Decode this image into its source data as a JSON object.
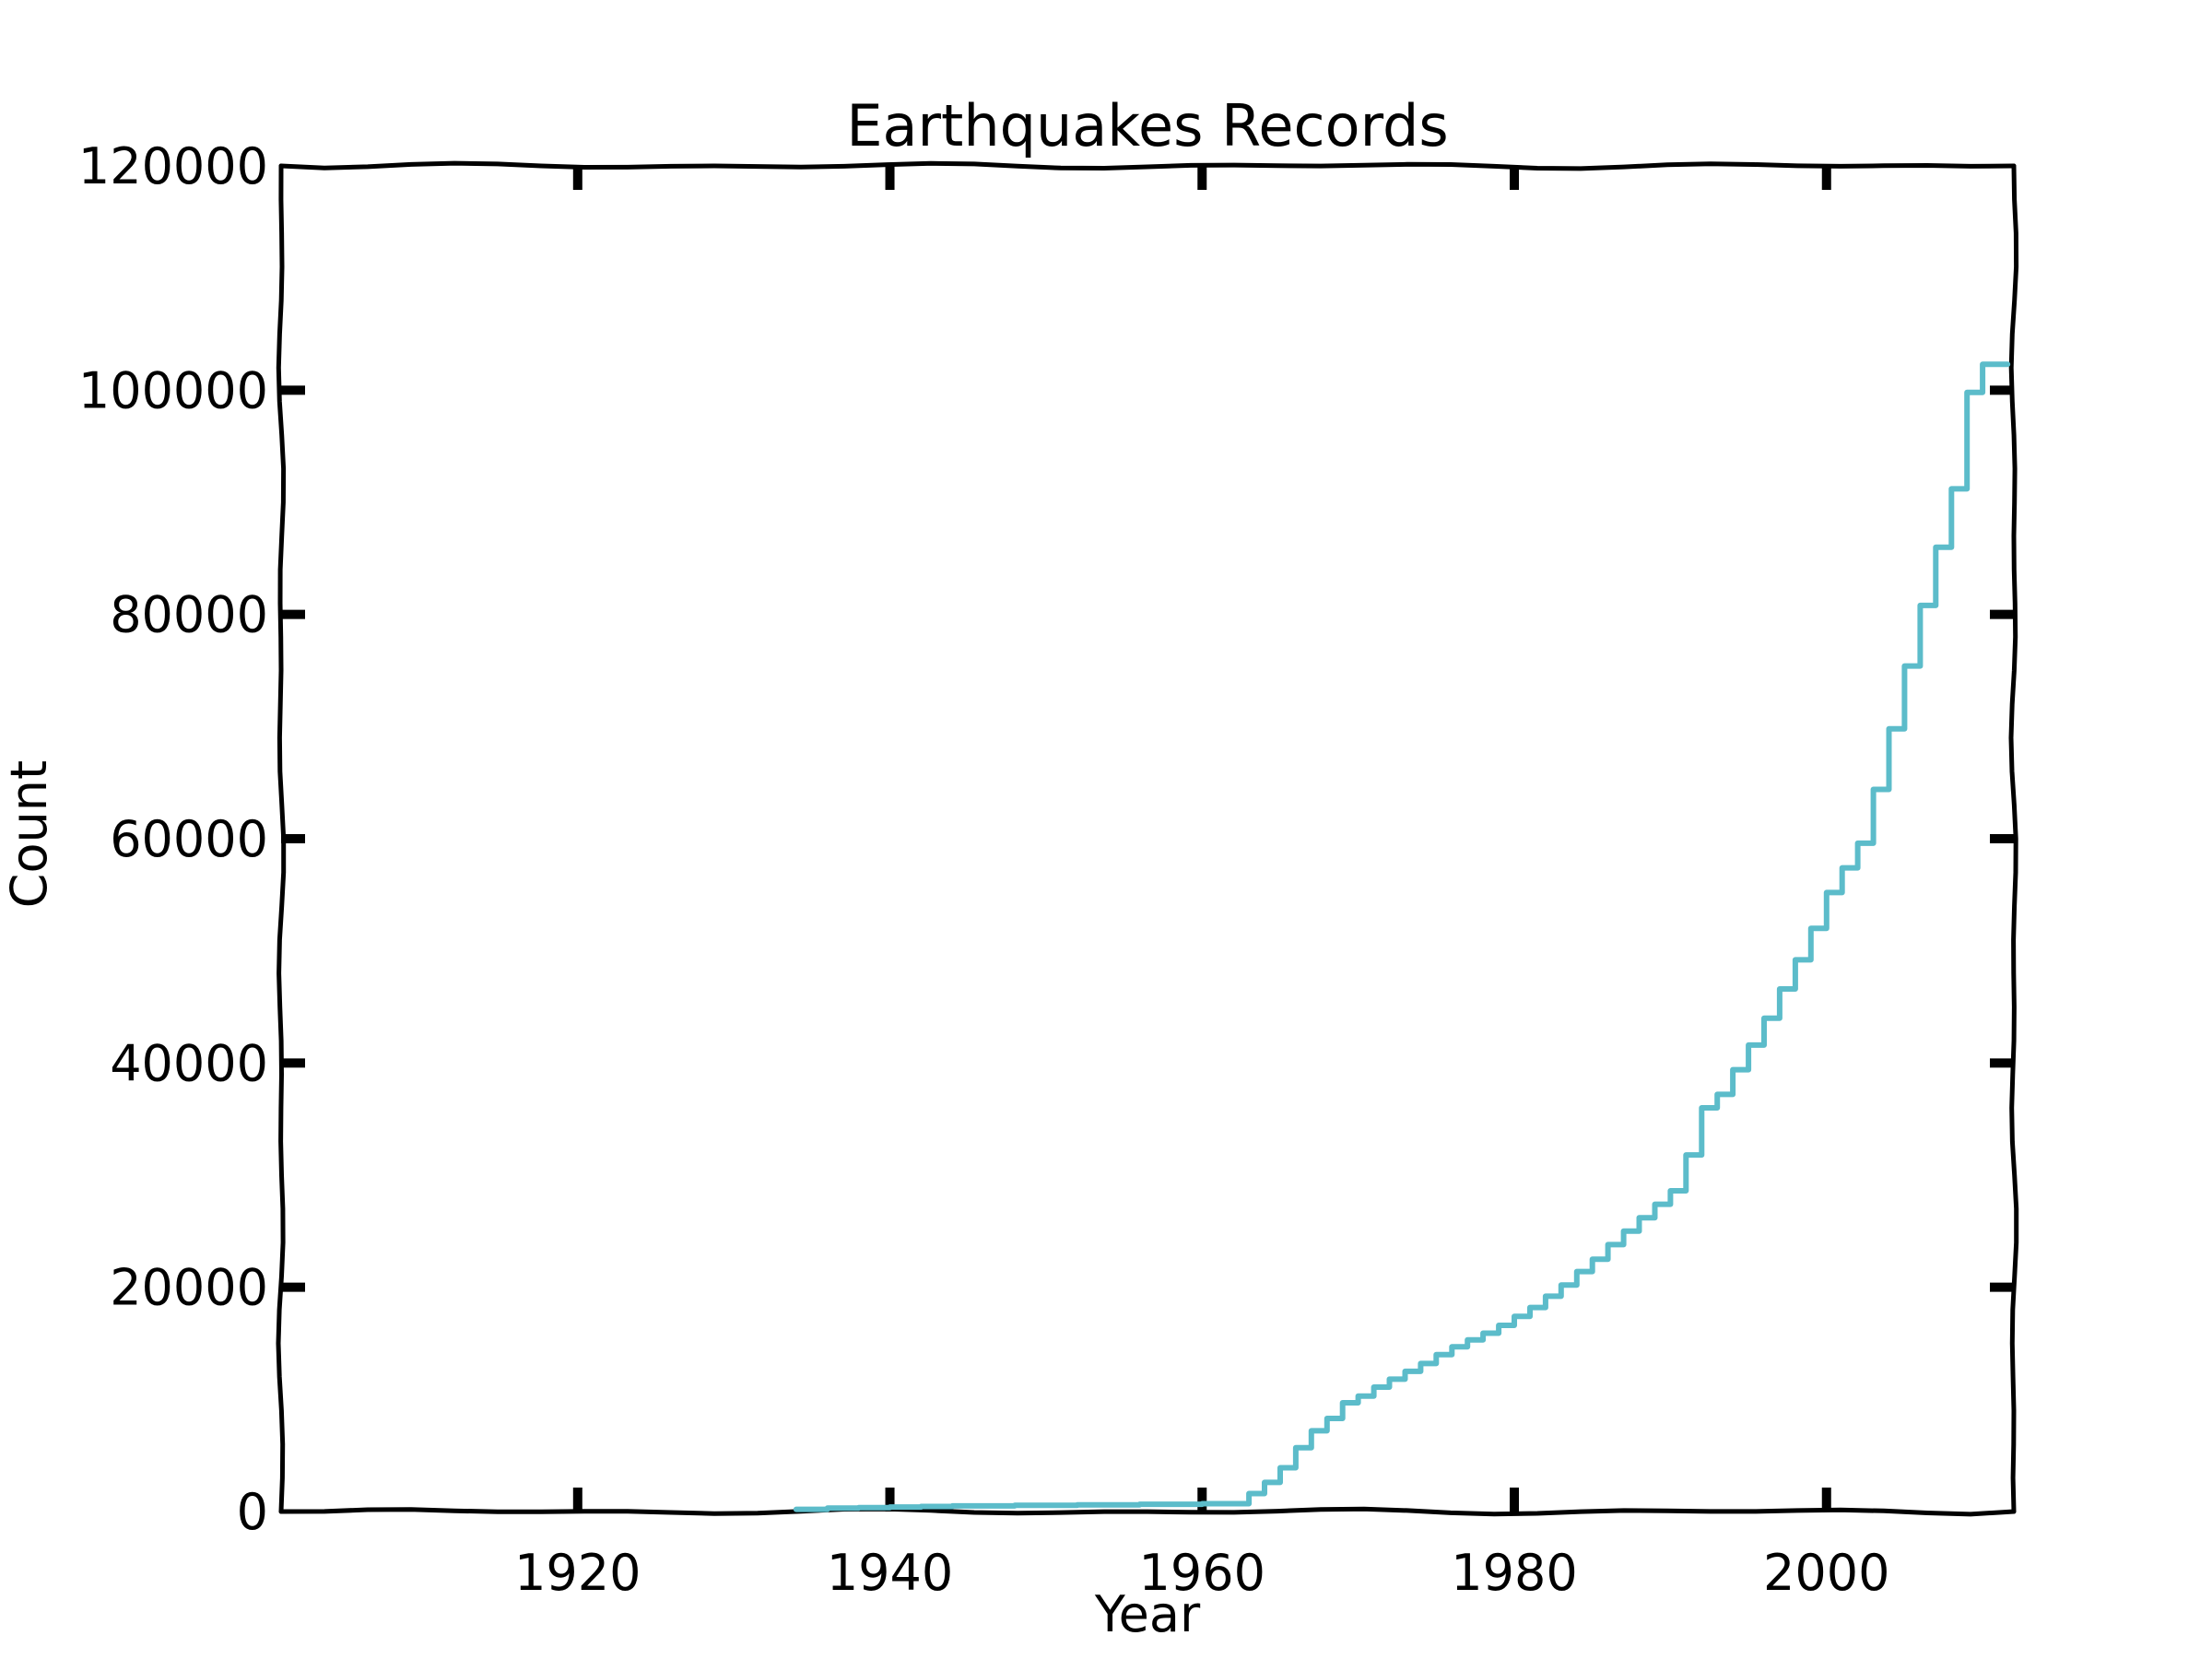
{
  "chart_data": {
    "type": "line",
    "title": "Earthquakes Records",
    "xlabel": "Year",
    "ylabel": "Count",
    "xlim": [
      1901,
      2012
    ],
    "ylim": [
      0,
      120000
    ],
    "x_ticks": [
      1920,
      1940,
      1960,
      1980,
      2000
    ],
    "y_ticks": [
      0,
      20000,
      40000,
      60000,
      80000,
      100000,
      120000
    ],
    "grid": false,
    "style": "step (hand-drawn)",
    "line_color": "#5cbcca",
    "series": [
      {
        "x": [
          1934,
          1936,
          1938,
          1940,
          1942,
          1944,
          1946,
          1948,
          1950,
          1952,
          1954,
          1956,
          1958,
          1960,
          1961,
          1962,
          1963,
          1964,
          1965,
          1966,
          1967,
          1968,
          1969,
          1970,
          1971,
          1972,
          1973,
          1974,
          1975,
          1976,
          1977,
          1978,
          1979,
          1980,
          1981,
          1982,
          1983,
          1984,
          1985,
          1986,
          1987,
          1988,
          1989,
          1990,
          1991,
          1992,
          1993,
          1994,
          1995,
          1996,
          1997,
          1998,
          1999,
          2000,
          2001,
          2002,
          2003,
          2004,
          2005,
          2006,
          2007,
          2008,
          2009,
          2010,
          2011
        ],
        "values": [
          200,
          300,
          350,
          400,
          450,
          500,
          500,
          550,
          550,
          600,
          600,
          650,
          650,
          700,
          700,
          700,
          1600,
          2600,
          3900,
          5700,
          7200,
          8300,
          9700,
          10300,
          11100,
          11800,
          12500,
          13200,
          14000,
          14700,
          15300,
          15900,
          16600,
          17400,
          18200,
          19200,
          20200,
          21400,
          22500,
          23800,
          25000,
          26200,
          27400,
          28600,
          31800,
          36000,
          37200,
          39400,
          41600,
          44000,
          46600,
          49200,
          52000,
          55200,
          57400,
          59600,
          64400,
          69800,
          75400,
          80800,
          86000,
          91200,
          99800,
          102300,
          102300
        ]
      }
    ]
  }
}
